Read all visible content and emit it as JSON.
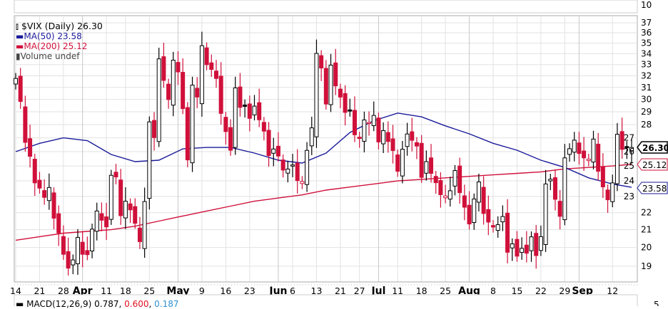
{
  "legend": {
    "title": "$VIX (Daily) 26.30",
    "ma50": "MA(50) 23.58",
    "ma200": "MA(200) 25.12",
    "volume": "Volume undef"
  },
  "top_panel_label": "10",
  "bottom_panel_label": "5",
  "macd": {
    "label": "MACD(12,26,9)",
    "macd": "0.787",
    "signal": "0.600",
    "hist": "0.187"
  },
  "badges": {
    "last": "26.30",
    "ma200": "25.12",
    "ma50": "23.58"
  },
  "colors": {
    "up": "#000000",
    "down": "#d0103a",
    "ma50": "#1a1a9a",
    "ma200": "#d0103a"
  },
  "chart_data": {
    "type": "candlestick",
    "title": "$VIX (Daily)",
    "yscale": "log",
    "ylim": [
      18.4,
      37.3
    ],
    "yticks": [
      19,
      20,
      21,
      22,
      23,
      24,
      25,
      26,
      27,
      28,
      29,
      30,
      31,
      32,
      33,
      34,
      35,
      36,
      37
    ],
    "xticks": [
      {
        "day": 0,
        "label": "14",
        "month": false
      },
      {
        "day": 5,
        "label": "21",
        "month": false
      },
      {
        "day": 10,
        "label": "28",
        "month": false
      },
      {
        "day": 14,
        "label": "Apr",
        "month": true
      },
      {
        "day": 19,
        "label": "11",
        "month": false
      },
      {
        "day": 23,
        "label": "18",
        "month": false
      },
      {
        "day": 28,
        "label": "25",
        "month": false
      },
      {
        "day": 34,
        "label": "May",
        "month": true
      },
      {
        "day": 39,
        "label": "9",
        "month": false
      },
      {
        "day": 44,
        "label": "16",
        "month": false
      },
      {
        "day": 49,
        "label": "23",
        "month": false
      },
      {
        "day": 55,
        "label": "Jun",
        "month": true
      },
      {
        "day": 58,
        "label": "6",
        "month": false
      },
      {
        "day": 63,
        "label": "13",
        "month": false
      },
      {
        "day": 68,
        "label": "21",
        "month": false
      },
      {
        "day": 72,
        "label": "27",
        "month": false
      },
      {
        "day": 76,
        "label": "Jul",
        "month": true
      },
      {
        "day": 80,
        "label": "11",
        "month": false
      },
      {
        "day": 85,
        "label": "18",
        "month": false
      },
      {
        "day": 90,
        "label": "25",
        "month": false
      },
      {
        "day": 95,
        "label": "Aug",
        "month": true
      },
      {
        "day": 100,
        "label": "8",
        "month": false
      },
      {
        "day": 105,
        "label": "15",
        "month": false
      },
      {
        "day": 110,
        "label": "22",
        "month": false
      },
      {
        "day": 115,
        "label": "29",
        "month": false
      },
      {
        "day": 118,
        "label": "Sep",
        "month": true
      },
      {
        "day": 125,
        "label": "12",
        "month": false
      }
    ],
    "close": [
      31.77,
      29.83,
      26.67,
      25.67,
      23.87,
      23.53,
      22.94,
      23.57,
      21.67,
      20.81,
      19.63,
      18.9,
      19.33,
      20.56,
      19.63,
      19.61,
      21.03,
      22.1,
      21.55,
      21.16,
      24.37,
      24.26,
      21.82,
      22.7,
      22.17,
      21.37,
      20.32,
      22.68,
      28.21,
      27.02,
      33.52,
      31.6,
      29.99,
      33.4,
      32.34,
      29.25,
      25.42,
      31.2,
      30.19,
      34.75,
      32.99,
      32.56,
      31.77,
      28.87,
      27.47,
      26.1,
      30.96,
      29.35,
      29.43,
      28.48,
      29.45,
      28.37,
      27.5,
      25.72,
      26.19,
      25.69,
      24.72,
      24.79,
      25.07,
      24.02,
      23.96,
      26.09,
      27.75,
      34.02,
      32.69,
      29.62,
      32.95,
      31.13,
      30.19,
      28.95,
      29.05,
      27.23,
      26.95,
      28.36,
      28.16,
      28.71,
      26.7,
      27.54,
      26.73,
      26.08,
      24.64,
      26.17,
      27.29,
      26.82,
      26.4,
      24.23,
      25.3,
      24.5,
      23.88,
      23.11,
      23.03,
      23.36,
      24.69,
      23.24,
      22.33,
      21.33,
      22.84,
      23.93,
      21.95,
      21.44,
      21.15,
      21.29,
      21.77,
      19.74,
      20.2,
      19.53,
      19.95,
      19.69,
      20.59,
      19.56,
      20.6,
      23.8,
      24.11,
      22.82,
      21.78,
      25.56,
      26.21,
      26.83,
      25.87,
      25.56,
      25.47,
      26.91,
      24.64,
      23.61,
      22.79,
      23.87,
      27.27,
      26.16,
      26.27,
      26.3
    ],
    "ma50": {
      "step_days": 5,
      "values": [
        26.0,
        26.6,
        27.0,
        26.8,
        25.8,
        25.3,
        25.4,
        26.2,
        26.3,
        26.3,
        25.9,
        25.4,
        25.2,
        25.9,
        27.4,
        28.3,
        28.9,
        28.6,
        27.9,
        27.3,
        26.6,
        26.1,
        25.4,
        24.9,
        24.2,
        23.8,
        23.58
      ]
    },
    "ma200": {
      "step_days": 5,
      "values": [
        20.4,
        20.6,
        20.8,
        20.9,
        21.0,
        21.2,
        21.5,
        21.8,
        22.1,
        22.4,
        22.7,
        22.9,
        23.1,
        23.4,
        23.6,
        23.8,
        24.0,
        24.1,
        24.2,
        24.3,
        24.4,
        24.5,
        24.6,
        24.8,
        24.9,
        25.0,
        25.12
      ]
    }
  }
}
